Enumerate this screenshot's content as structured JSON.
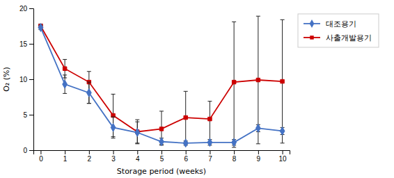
{
  "chart_data": {
    "type": "line",
    "x_label": "Storage period (weeks)",
    "y_label": "O₂ (%)",
    "x": [
      0,
      1,
      2,
      3,
      4,
      5,
      6,
      7,
      8,
      9,
      10
    ],
    "xlim": [
      -0.3,
      10.3
    ],
    "xticks": [
      0,
      1,
      2,
      3,
      4,
      5,
      6,
      7,
      8,
      9,
      10
    ],
    "ylim": [
      0,
      20
    ],
    "yticks": [
      0,
      5,
      10,
      15,
      20
    ],
    "grid": false,
    "legend": "right",
    "series": [
      {
        "name": "대조용기",
        "color": "#4472C4",
        "marker": "diamond",
        "line_style": "solid",
        "values": [
          17.3,
          9.3,
          8.1,
          3.2,
          2.5,
          1.2,
          1.0,
          1.1,
          1.1,
          3.1,
          2.7
        ],
        "error_low": [
          0.3,
          1.3,
          1.5,
          1.5,
          1.5,
          0.5,
          0.3,
          0.4,
          0.4,
          0.5,
          0.5
        ],
        "error_high": [
          0.3,
          1.3,
          1.5,
          1.5,
          1.5,
          0.5,
          0.3,
          0.4,
          0.4,
          0.5,
          0.5
        ]
      },
      {
        "name": "사출개발용기",
        "color": "#CC0000",
        "marker": "square",
        "line_style": "solid",
        "values": [
          17.5,
          11.5,
          9.6,
          4.9,
          2.6,
          3.0,
          4.6,
          4.4,
          9.6,
          9.9,
          9.7
        ],
        "error_low": [
          0.3,
          1.3,
          3.0,
          3.0,
          1.7,
          2.2,
          3.7,
          3.3,
          9.2,
          9.0,
          8.7
        ],
        "error_high": [
          0.3,
          1.3,
          1.5,
          3.0,
          1.7,
          2.5,
          3.7,
          2.5,
          8.5,
          9.0,
          8.7
        ]
      }
    ]
  }
}
